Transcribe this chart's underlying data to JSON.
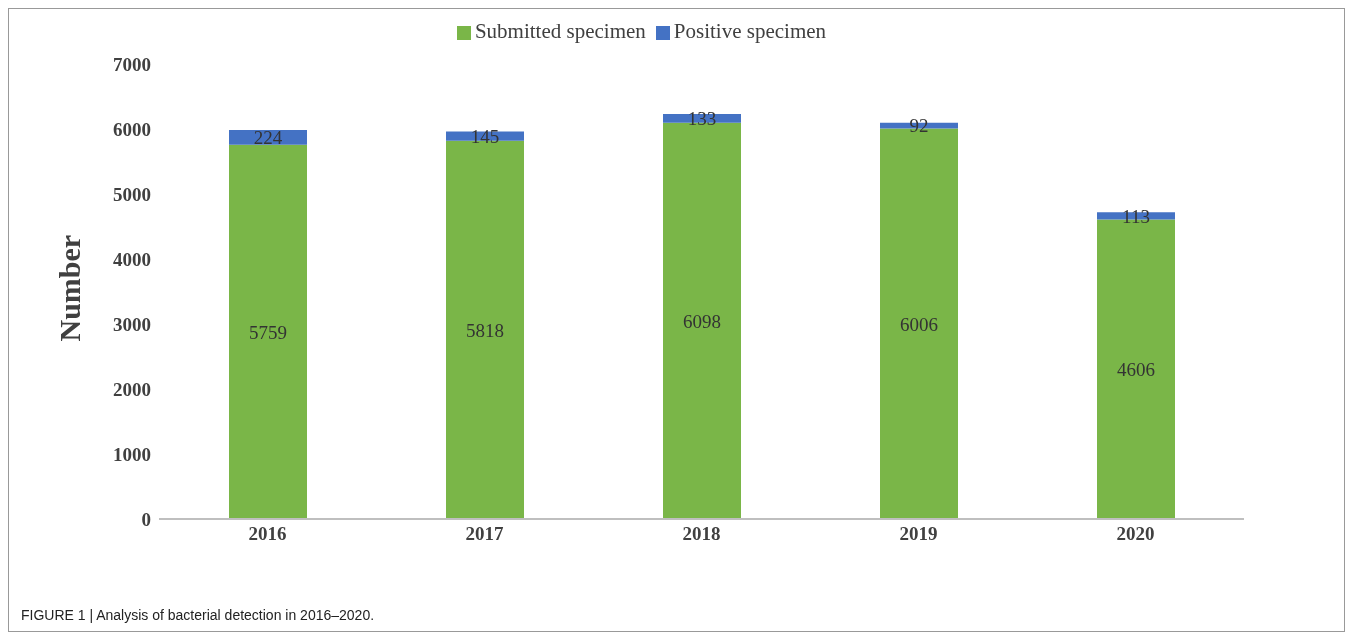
{
  "chart_data": {
    "type": "bar",
    "ylabel": "Number",
    "categories": [
      "2016",
      "2017",
      "2018",
      "2019",
      "2020"
    ],
    "stacked": true,
    "series": [
      {
        "name": "Submitted specimen",
        "color": "#7ab648",
        "values": [
          5759,
          5818,
          6098,
          6006,
          4606
        ]
      },
      {
        "name": "Positive specimen",
        "color": "#4472c4",
        "values": [
          224,
          145,
          133,
          92,
          113
        ]
      }
    ],
    "ylim": [
      0,
      7000
    ],
    "yticks": [
      0,
      1000,
      2000,
      3000,
      4000,
      5000,
      6000,
      7000
    ],
    "grid": false,
    "legend": "top",
    "data_labels": true,
    "annotations": [
      "FIGURE 1 | Analysis of bacterial detection in 2016–2020."
    ]
  }
}
